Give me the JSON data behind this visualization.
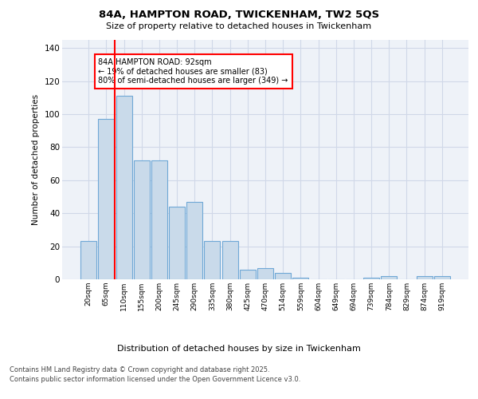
{
  "title1": "84A, HAMPTON ROAD, TWICKENHAM, TW2 5QS",
  "title2": "Size of property relative to detached houses in Twickenham",
  "xlabel": "Distribution of detached houses by size in Twickenham",
  "ylabel": "Number of detached properties",
  "categories": [
    "20sqm",
    "65sqm",
    "110sqm",
    "155sqm",
    "200sqm",
    "245sqm",
    "290sqm",
    "335sqm",
    "380sqm",
    "425sqm",
    "470sqm",
    "514sqm",
    "559sqm",
    "604sqm",
    "649sqm",
    "694sqm",
    "739sqm",
    "784sqm",
    "829sqm",
    "874sqm",
    "919sqm"
  ],
  "values": [
    23,
    97,
    111,
    72,
    72,
    44,
    47,
    23,
    23,
    6,
    7,
    4,
    1,
    0,
    0,
    0,
    1,
    2,
    0,
    2,
    2
  ],
  "bar_color": "#c9daea",
  "bar_edge_color": "#6fa8d6",
  "red_line_x": 1.5,
  "annotation_text": "84A HAMPTON ROAD: 92sqm\n← 19% of detached houses are smaller (83)\n80% of semi-detached houses are larger (349) →",
  "annotation_box_color": "white",
  "annotation_border_color": "red",
  "grid_color": "#d0d8e8",
  "bg_color": "#eef2f8",
  "ylim": [
    0,
    145
  ],
  "yticks": [
    0,
    20,
    40,
    60,
    80,
    100,
    120,
    140
  ],
  "footer_line1": "Contains HM Land Registry data © Crown copyright and database right 2025.",
  "footer_line2": "Contains public sector information licensed under the Open Government Licence v3.0."
}
